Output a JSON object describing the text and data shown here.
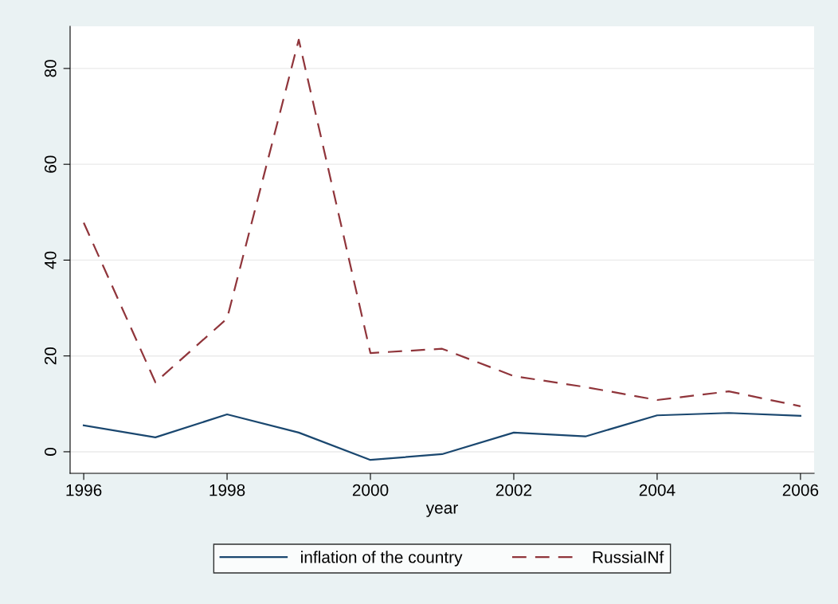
{
  "chart_data": {
    "type": "line",
    "xlabel": "year",
    "x": [
      1996,
      1997,
      1998,
      1999,
      2000,
      2001,
      2002,
      2003,
      2004,
      2005,
      2006
    ],
    "series": [
      {
        "name": "inflation of the country",
        "color": "#1a476f",
        "line_style": "solid",
        "values": [
          5.5,
          3.0,
          7.8,
          4.0,
          -1.7,
          -0.5,
          4.0,
          3.2,
          7.6,
          8.1,
          7.5
        ]
      },
      {
        "name": "RussiaINf",
        "color": "#90353b",
        "line_style": "dashed",
        "values": [
          47.8,
          14.5,
          27.8,
          86,
          20.6,
          21.5,
          15.8,
          13.5,
          10.8,
          12.6,
          9.5
        ]
      }
    ],
    "xlim": [
      1995.81,
      2006.19
    ],
    "ylim": [
      -4.5,
      88.8
    ],
    "xticks": [
      1996,
      1998,
      2000,
      2002,
      2004,
      2006
    ],
    "yticks": [
      0,
      20,
      40,
      60,
      80
    ],
    "grid": "y",
    "legend": "bottom",
    "marker": "none"
  }
}
